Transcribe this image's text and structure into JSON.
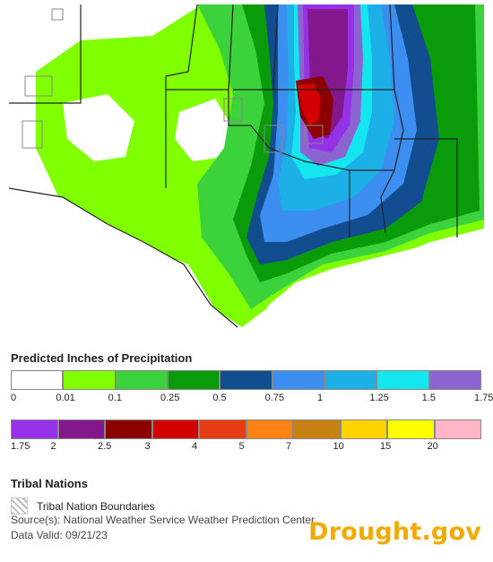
{
  "colors": {
    "c0": "#ffffff",
    "c001": "#80ff00",
    "c01": "#3cd23c",
    "c025": "#0a9b0a",
    "c05": "#124e8f",
    "c075": "#3c8ef0",
    "c1": "#1cb0e6",
    "c125": "#14e6f0",
    "c15": "#8c64d2",
    "c175": "#9632e6",
    "c2": "#82188c",
    "c25": "#8c0000",
    "c3": "#d20000",
    "c4": "#e63c14",
    "c5": "#ff8214",
    "c7": "#c88214",
    "c10": "#ffd200",
    "c15b": "#ffff00",
    "c20": "#ffb4c8",
    "brand": "#f2a900"
  },
  "legend": {
    "title": "Predicted Inches of Precipitation",
    "row1": {
      "swatches": [
        "#ffffff",
        "#80ff00",
        "#3cd23c",
        "#0a9b0a",
        "#124e8f",
        "#3c8ef0",
        "#1cb0e6",
        "#14e6f0",
        "#8c64d2"
      ],
      "labels": [
        "0",
        "0.01",
        "0.1",
        "0.25",
        "0.5",
        "0.75",
        "1",
        "1.25",
        "1.5",
        "1.75"
      ]
    },
    "row2": {
      "swatches": [
        "#9632e6",
        "#82188c",
        "#8c0000",
        "#d20000",
        "#e63c14",
        "#ff8214",
        "#c88214",
        "#ffd200",
        "#ffff00",
        "#ffb4c8"
      ],
      "labels": [
        "1.75",
        "2",
        "2.5",
        "3",
        "4",
        "5",
        "7",
        "10",
        "15",
        "20"
      ]
    }
  },
  "tribal": {
    "title": "Tribal Nations",
    "label": "Tribal Nation Boundaries"
  },
  "footer": {
    "source": "Source(s): National Weather Service Weather Prediction Center",
    "valid": "Data Valid: 09/21/23",
    "brand": "Drought.gov"
  }
}
